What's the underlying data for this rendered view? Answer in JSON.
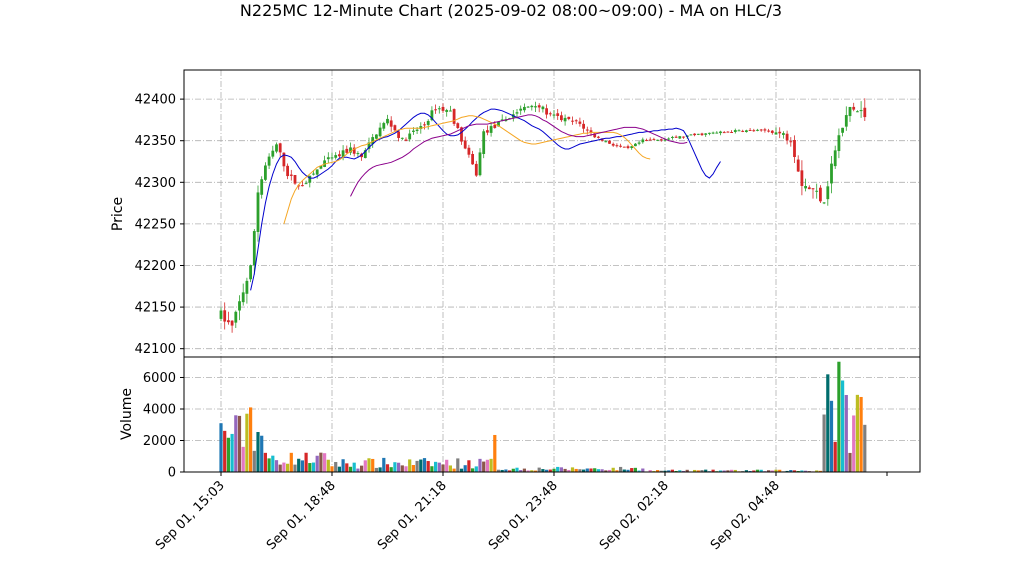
{
  "chart_data": {
    "type": "candlestick",
    "title": "N225MC 12-Minute Chart (2025-09-02 08:00~09:00) - MA on HLC/3",
    "ylabel": "Price",
    "volume_ylabel": "Volume",
    "ylim": [
      42090,
      42435
    ],
    "volume_ylim": [
      0,
      7300
    ],
    "yticks": [
      42100,
      42150,
      42200,
      42250,
      42300,
      42350,
      42400
    ],
    "volume_yticks": [
      0,
      2000,
      4000,
      6000
    ],
    "ytick_labels": [
      "42100",
      "42150",
      "42200",
      "42250",
      "42300",
      "42350",
      "42400"
    ],
    "volume_ytick_labels": [
      "0",
      "2000",
      "4000",
      "6000"
    ],
    "xtick_labels": [
      "Sep 01, 15:03",
      "Sep 01, 18:48",
      "Sep 01, 21:18",
      "Sep 01, 23:48",
      "Sep 02, 02:18",
      "Sep 02, 04:48"
    ],
    "xtick_index": [
      0,
      30,
      60,
      90,
      120,
      150
    ],
    "grid": true,
    "up_color": "#2ca02c",
    "down_color": "#d62728",
    "volume_colors": [
      "#1f77b4",
      "#d62728",
      "#2ca02c",
      "#17becf",
      "#9467bd",
      "#8c564b",
      "#e377c2",
      "#bcbd22",
      "#ff7f0e",
      "#7f7f7f",
      "#006d6d"
    ],
    "ma_lines": [
      {
        "color": "#0000cc",
        "start": 8,
        "values": [
          42170,
          42190,
          42220,
          42250,
          42275,
          42295,
          42310,
          42322,
          42330,
          42333,
          42332,
          42330,
          42325,
          42318,
          42312,
          42308,
          42305,
          42305,
          42307,
          42310,
          42313,
          42316,
          42320,
          42325,
          42329,
          42330,
          42330,
          42329,
          42328,
          42330,
          42333,
          42337,
          42342,
          42346,
          42350,
          42352,
          42354,
          42355,
          42357,
          42359,
          42362,
          42366,
          42370,
          42374,
          42378,
          42381,
          42383,
          42383,
          42381,
          42377,
          42372,
          42367,
          42362,
          42358,
          42356,
          42356,
          42357,
          42360,
          42364,
          42368,
          42373,
          42377,
          42381,
          42384,
          42386,
          42388,
          42388,
          42387,
          42386,
          42384,
          42382,
          42380,
          42378,
          42376,
          42374,
          42371,
          42368,
          42366,
          42364,
          42361,
          42357,
          42353,
          42349,
          42345,
          42342,
          42340,
          42340,
          42342,
          42344,
          42346,
          42347,
          42348,
          42349,
          42350,
          42351,
          42352,
          42353,
          42353,
          42354,
          42355,
          42355,
          42356,
          42357,
          42358,
          42359,
          42360,
          42360,
          42361,
          42361,
          42362,
          42362,
          42363,
          42363,
          42364,
          42364,
          42365,
          42364,
          42362,
          42355,
          42345,
          42335,
          42325,
          42315,
          42308,
          42305,
          42310,
          42318,
          42325
        ]
      },
      {
        "color": "#f5a623",
        "start": 17,
        "values": [
          42250,
          42265,
          42280,
          42290,
          42297,
          42302,
          42306,
          42310,
          42314,
          42318,
          42320,
          42322,
          42323,
          42324,
          42325,
          42327,
          42330,
          42334,
          42337,
          42340,
          42342,
          42344,
          42345,
          42347,
          42349,
          42351,
          42353,
          42355,
          42357,
          42359,
          42361,
          42363,
          42364,
          42365,
          42365,
          42365,
          42365,
          42365,
          42366,
          42367,
          42368,
          42369,
          42370,
          42371,
          42372,
          42373,
          42374,
          42376,
          42378,
          42379,
          42380,
          42380,
          42379,
          42378,
          42376,
          42374,
          42372,
          42370,
          42368,
          42365,
          42362,
          42359,
          42356,
          42353,
          42350,
          42348,
          42347,
          42346,
          42346,
          42347,
          42348,
          42349,
          42350,
          42351,
          42352,
          42353,
          42354,
          42355,
          42356,
          42357,
          42358,
          42359,
          42359,
          42360,
          42360,
          42360,
          42360,
          42360,
          42360,
          42360,
          42359,
          42357,
          42354,
          42350,
          42345,
          42340,
          42335,
          42331,
          42329,
          42328
        ]
      },
      {
        "color": "#8b008b",
        "start": 35,
        "values": [
          42283,
          42292,
          42300,
          42306,
          42311,
          42315,
          42318,
          42320,
          42321,
          42322,
          42323,
          42324,
          42326,
          42328,
          42330,
          42333,
          42336,
          42340,
          42343,
          42346,
          42349,
          42351,
          42353,
          42354,
          42355,
          42356,
          42357,
          42358,
          42360,
          42362,
          42364,
          42366,
          42368,
          42369,
          42370,
          42370,
          42370,
          42370,
          42371,
          42372,
          42373,
          42374,
          42375,
          42376,
          42377,
          42378,
          42379,
          42380,
          42381,
          42381,
          42380,
          42378,
          42375,
          42373,
          42370,
          42367,
          42364,
          42361,
          42359,
          42357,
          42356,
          42355,
          42355,
          42355,
          42356,
          42357,
          42358,
          42359,
          42360,
          42361,
          42362,
          42363,
          42364,
          42365,
          42366,
          42366,
          42366,
          42366,
          42365,
          42364,
          42362,
          42360,
          42358,
          42356,
          42354,
          42352,
          42350,
          42349,
          42348,
          42347,
          42347,
          42348
        ]
      }
    ]
  }
}
